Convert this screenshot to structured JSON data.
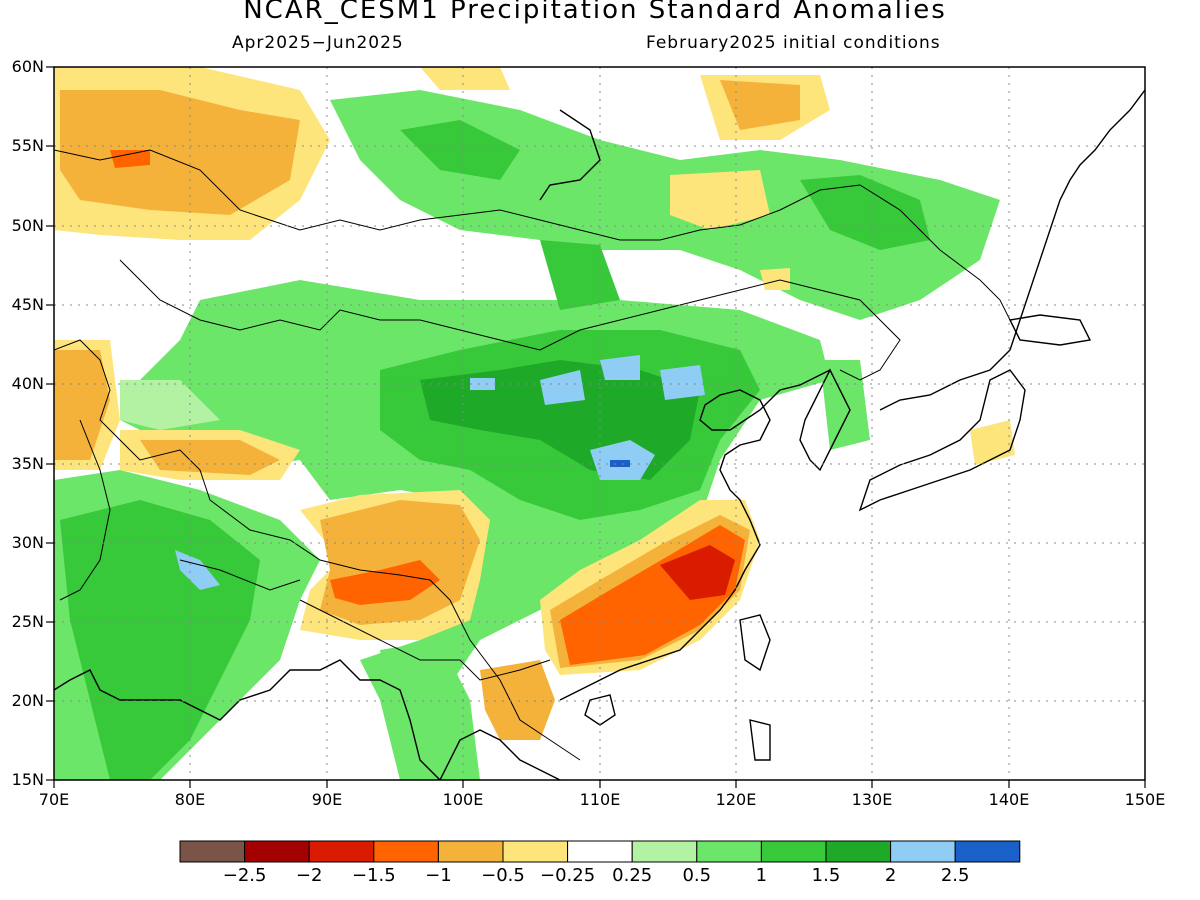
{
  "header": {
    "title": "NCAR_CESM1 Precipitation Standard Anomalies",
    "period": "Apr2025−Jun2025",
    "init": "February2025 initial conditions"
  },
  "map": {
    "region": "East and South Asia",
    "lon_range": [
      70,
      150
    ],
    "lat_range": [
      15,
      60
    ],
    "lat_labels": [
      "60N",
      "55N",
      "50N",
      "45N",
      "40N",
      "35N",
      "30N",
      "25N",
      "20N",
      "15N"
    ],
    "lon_labels": [
      "70E",
      "80E",
      "90E",
      "100E",
      "110E",
      "120E",
      "130E",
      "140E",
      "150E"
    ],
    "gridlines": "dotted"
  },
  "colorbar": {
    "labels": [
      "−2.5",
      "−2",
      "−1.5",
      "−1",
      "−0.5",
      "−0.25",
      "0.25",
      "0.5",
      "1",
      "1.5",
      "2",
      "2.5"
    ],
    "colors": [
      "#7a5547",
      "#a50000",
      "#d91c00",
      "#ff6400",
      "#f5b23a",
      "#fde57c",
      "#ffffff",
      "#b4f2a3",
      "#6be668",
      "#38c93a",
      "#1eaa28",
      "#8fcdf5",
      "#1960c8"
    ]
  },
  "colors": {
    "dry_light": "#fde57c",
    "dry_mid": "#f5b23a",
    "dry_strong": "#ff6400",
    "dry_very": "#d91c00",
    "wet_light": "#b4f2a3",
    "wet_mid": "#6be668",
    "wet_strong": "#38c93a",
    "wet_very": "#1eaa28",
    "wet_extreme": "#8fcdf5",
    "wet_max": "#1960c8"
  }
}
